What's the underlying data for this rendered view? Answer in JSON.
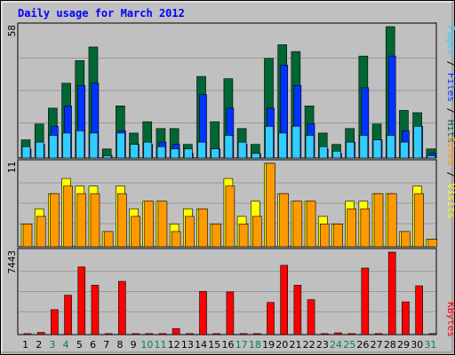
{
  "chart_data": [
    {
      "type": "bar",
      "title": "Daily usage for March 2012",
      "categories": [
        "1",
        "2",
        "3",
        "4",
        "5",
        "6",
        "7",
        "8",
        "9",
        "10",
        "11",
        "12",
        "13",
        "14",
        "15",
        "16",
        "17",
        "18",
        "19",
        "20",
        "21",
        "22",
        "23",
        "24",
        "25",
        "26",
        "27",
        "28",
        "29",
        "30",
        "31"
      ],
      "weekend_days": [
        "3",
        "4",
        "10",
        "11",
        "17",
        "18",
        "24",
        "25",
        "31"
      ],
      "ytick": "58",
      "ylim": [
        0,
        58
      ],
      "legend": [
        "Pages",
        "Files",
        "Hits"
      ],
      "grid": true,
      "series": [
        {
          "name": "Hits",
          "color": "#006633",
          "values": [
            8,
            15,
            22,
            33,
            43,
            49,
            4,
            23,
            11,
            16,
            13,
            13,
            6,
            36,
            16,
            35,
            13,
            6,
            44,
            50,
            47,
            23,
            11,
            6,
            13,
            45,
            15,
            58,
            21,
            20,
            4
          ]
        },
        {
          "name": "Files",
          "color": "#0033ff",
          "values": [
            4,
            6,
            14,
            23,
            32,
            33,
            1,
            12,
            6,
            6,
            7,
            6,
            2,
            28,
            4,
            22,
            6,
            2,
            22,
            41,
            32,
            15,
            4,
            2,
            7,
            31,
            8,
            45,
            12,
            14,
            2
          ]
        },
        {
          "name": "Pages",
          "color": "#33ccff",
          "values": [
            5,
            7,
            10,
            11,
            12,
            11,
            1,
            11,
            6,
            7,
            5,
            4,
            4,
            7,
            4,
            10,
            7,
            2,
            14,
            11,
            14,
            10,
            5,
            3,
            7,
            10,
            8,
            10,
            7,
            14,
            1
          ]
        }
      ]
    },
    {
      "type": "bar",
      "categories": [
        "1",
        "2",
        "3",
        "4",
        "5",
        "6",
        "7",
        "8",
        "9",
        "10",
        "11",
        "12",
        "13",
        "14",
        "15",
        "16",
        "17",
        "18",
        "19",
        "20",
        "21",
        "22",
        "23",
        "24",
        "25",
        "26",
        "27",
        "28",
        "29",
        "30",
        "31"
      ],
      "ytick": "11",
      "ylim": [
        0,
        11
      ],
      "legend": [
        "Sites",
        "Visits"
      ],
      "grid": true,
      "series": [
        {
          "name": "Visits",
          "color": "#ffff00",
          "values": [
            3,
            5,
            7,
            9,
            8,
            8,
            2,
            8,
            5,
            6,
            6,
            3,
            5,
            5,
            3,
            9,
            4,
            6,
            11,
            7,
            6,
            6,
            4,
            3,
            6,
            6,
            7,
            7,
            2,
            8,
            1
          ]
        },
        {
          "name": "Sites",
          "color": "#ff9900",
          "values": [
            3,
            4,
            7,
            8,
            7,
            7,
            2,
            7,
            4,
            6,
            6,
            2,
            4,
            5,
            3,
            8,
            3,
            4,
            11,
            7,
            6,
            6,
            3,
            3,
            5,
            5,
            7,
            7,
            2,
            7,
            1
          ]
        }
      ]
    },
    {
      "type": "bar",
      "categories": [
        "1",
        "2",
        "3",
        "4",
        "5",
        "6",
        "7",
        "8",
        "9",
        "10",
        "11",
        "12",
        "13",
        "14",
        "15",
        "16",
        "17",
        "18",
        "19",
        "20",
        "21",
        "22",
        "23",
        "24",
        "25",
        "26",
        "27",
        "28",
        "29",
        "30",
        "31"
      ],
      "ytick": "7443",
      "ylim": [
        0,
        7443
      ],
      "legend": [
        "KBytes"
      ],
      "grid": true,
      "series": [
        {
          "name": "KBytes",
          "color": "#ff0000",
          "values": [
            90,
            200,
            2250,
            3550,
            6100,
            4450,
            90,
            4800,
            90,
            90,
            90,
            550,
            90,
            3900,
            90,
            3850,
            90,
            90,
            2900,
            6250,
            4450,
            3150,
            90,
            160,
            90,
            6000,
            90,
            7443,
            2950,
            4400,
            90
          ]
        }
      ]
    }
  ]
}
